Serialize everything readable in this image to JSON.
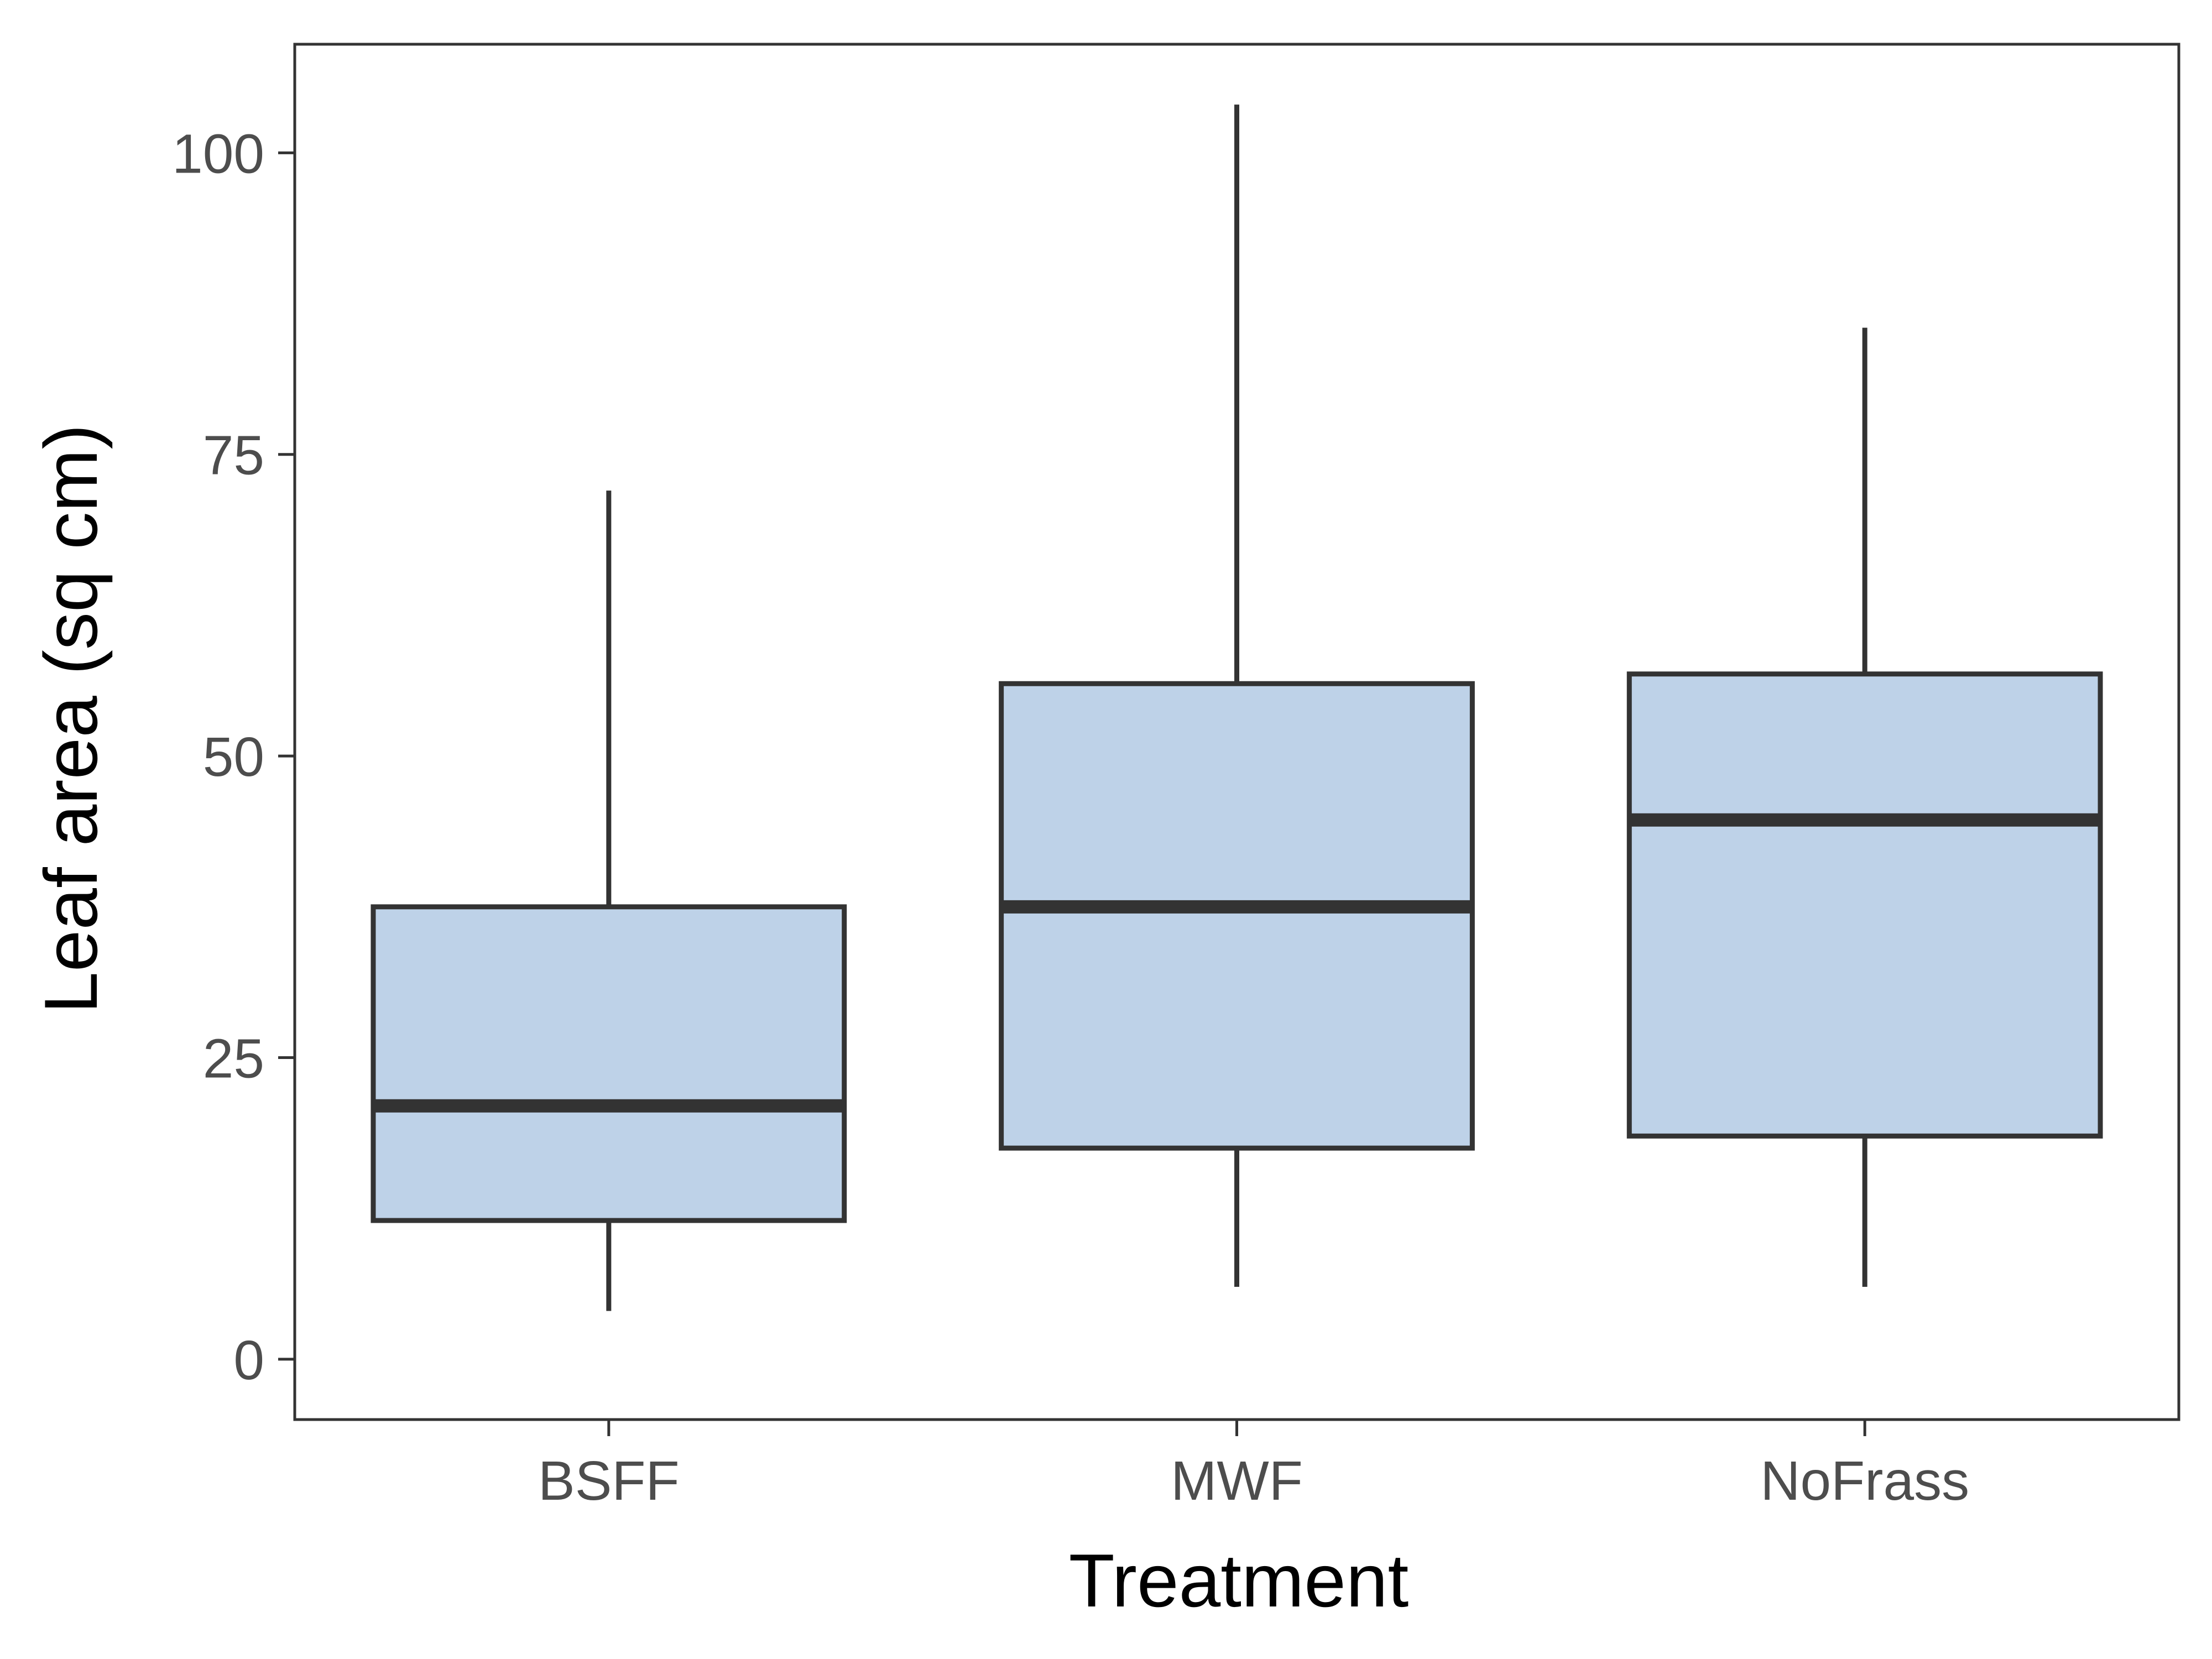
{
  "chart_data": {
    "type": "boxplot",
    "title": "",
    "xlabel": "Treatment",
    "ylabel": "Leaf area (sq cm)",
    "ylim": [
      -5,
      109
    ],
    "yticks": [
      0,
      25,
      50,
      75,
      100
    ],
    "grid": false,
    "legend": "none",
    "categories": [
      "BSFF",
      "MWF",
      "NoFrass"
    ],
    "boxes": [
      {
        "category": "BSFF",
        "whisker_low": 4,
        "q1": 11.5,
        "median": 21,
        "q3": 37.5,
        "whisker_high": 72
      },
      {
        "category": "MWF",
        "whisker_low": 6,
        "q1": 17.5,
        "median": 37.5,
        "q3": 56,
        "whisker_high": 104
      },
      {
        "category": "NoFrass",
        "whisker_low": 6,
        "q1": 18.5,
        "median": 44.7,
        "q3": 56.8,
        "whisker_high": 85.5
      }
    ],
    "colors": {
      "box_fill": "#bed2e8",
      "box_stroke": "#333333",
      "axis": "#333333"
    }
  }
}
